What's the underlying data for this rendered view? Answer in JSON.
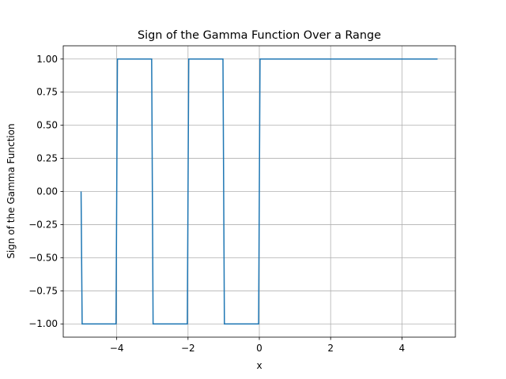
{
  "chart_data": {
    "type": "line",
    "title": "Sign of the Gamma Function Over a Range",
    "x_label": "x",
    "y_label": "Sign of the Gamma Function",
    "x": [
      -5,
      -4.97,
      -4.02,
      -3.98,
      -3.02,
      -2.98,
      -2.02,
      -1.98,
      -1.02,
      -0.98,
      -0.02,
      0.02,
      5
    ],
    "series": [
      {
        "color": "#1f77b4",
        "values": [
          0,
          -1,
          -1,
          1,
          1,
          -1,
          -1,
          1,
          1,
          -1,
          -1,
          1,
          1
        ]
      }
    ],
    "xlim": [
      -5.5,
      5.5
    ],
    "xticks": [
      {
        "value": -4,
        "label": "−4"
      },
      {
        "value": -2,
        "label": "−2"
      },
      0,
      2,
      4
    ],
    "ylim": [
      -1.1,
      1.1
    ],
    "yticks": [
      {
        "value": -1,
        "label": "−1.00"
      },
      {
        "value": -0.75,
        "label": "−0.75"
      },
      {
        "value": -0.5,
        "label": "−0.50"
      },
      {
        "value": -0.25,
        "label": "−0.25"
      },
      {
        "value": 0,
        "label": "0.00"
      },
      {
        "value": 0.25,
        "label": "0.25"
      },
      {
        "value": 0.5,
        "label": "0.50"
      },
      {
        "value": 0.75,
        "label": "0.75"
      },
      {
        "value": 1,
        "label": "1.00"
      }
    ],
    "grid": true
  }
}
